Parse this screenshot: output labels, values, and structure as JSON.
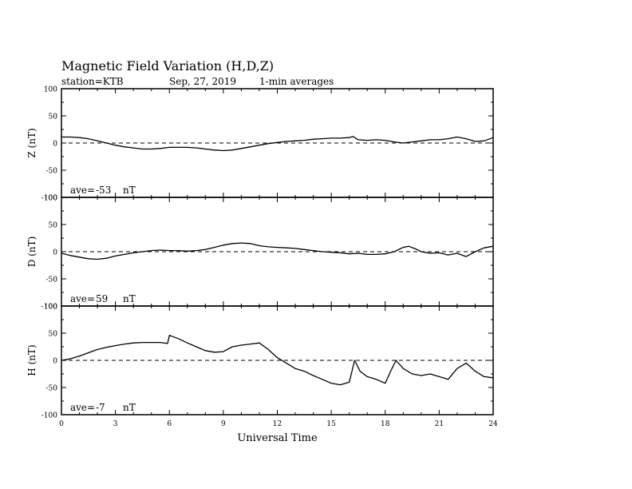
{
  "header": {
    "title": "Magnetic Field Variation (H,D,Z)",
    "station": "station=KTB",
    "date": "Sep, 27, 2019",
    "averaging": "1-min averages"
  },
  "chart_data": {
    "type": "line",
    "xlabel": "Universal Time",
    "xlim": [
      0,
      24
    ],
    "x_ticks": [
      0,
      3,
      6,
      9,
      12,
      15,
      18,
      21,
      24
    ],
    "baseline": 0,
    "panels": [
      {
        "name": "Z",
        "ylabel": "Z (nT)",
        "ylim": [
          -100,
          100
        ],
        "y_ticks": [
          100,
          50,
          0,
          -50,
          -100
        ],
        "ave_label": "ave=",
        "ave_value": "-53",
        "ave_unit": "nT",
        "x": [
          0,
          0.5,
          1,
          1.5,
          2,
          2.5,
          3,
          3.5,
          4,
          4.5,
          5,
          5.5,
          6,
          6.5,
          7,
          7.5,
          8,
          8.5,
          9,
          9.5,
          10,
          10.5,
          11,
          11.5,
          12,
          12.5,
          13,
          13.5,
          14,
          14.5,
          15,
          15.5,
          16,
          16.2,
          16.5,
          17,
          17.5,
          18,
          18.5,
          19,
          19.5,
          20,
          20.5,
          21,
          21.5,
          22,
          22.5,
          23,
          23.5,
          24
        ],
        "values": [
          11,
          11,
          10,
          8,
          4,
          0,
          -4,
          -7,
          -9,
          -11,
          -11,
          -10,
          -8,
          -8,
          -8,
          -9,
          -11,
          -13,
          -14,
          -13,
          -10,
          -7,
          -4,
          -1,
          1,
          3,
          4,
          5,
          7,
          8,
          9,
          9,
          10,
          12,
          6,
          5,
          6,
          5,
          2,
          0,
          2,
          4,
          6,
          6,
          8,
          11,
          8,
          3,
          4,
          10
        ]
      },
      {
        "name": "D",
        "ylabel": "D (nT)",
        "ylim": [
          -100,
          100
        ],
        "y_ticks": [
          100,
          50,
          0,
          -50,
          -100
        ],
        "ave_label": "ave=",
        "ave_value": "59",
        "ave_unit": "nT",
        "x": [
          0,
          0.5,
          1,
          1.5,
          2,
          2.5,
          3,
          3.5,
          4,
          4.5,
          5,
          5.5,
          6,
          6.5,
          7,
          7.5,
          8,
          8.5,
          9,
          9.5,
          10,
          10.5,
          11,
          11.5,
          12,
          12.5,
          13,
          13.5,
          14,
          14.5,
          15,
          15.5,
          16,
          16.5,
          17,
          17.5,
          18,
          18.5,
          19,
          19.3,
          19.7,
          20,
          20.5,
          21,
          21.5,
          22,
          22.5,
          23,
          23.5,
          24
        ],
        "values": [
          -3,
          -7,
          -10,
          -13,
          -14,
          -12,
          -8,
          -5,
          -2,
          0,
          2,
          3,
          2,
          2,
          1,
          2,
          4,
          8,
          12,
          15,
          16,
          15,
          11,
          9,
          8,
          7,
          6,
          4,
          2,
          0,
          -1,
          -2,
          -4,
          -3,
          -5,
          -5,
          -4,
          0,
          8,
          10,
          5,
          0,
          -3,
          -2,
          -6,
          -3,
          -9,
          0,
          7,
          10
        ]
      },
      {
        "name": "H",
        "ylabel": "H (nT)",
        "ylim": [
          -100,
          100
        ],
        "y_ticks": [
          100,
          50,
          0,
          -50,
          -100
        ],
        "ave_label": "ave=",
        "ave_value": "-7",
        "ave_unit": "nT",
        "x": [
          0,
          0.5,
          1,
          1.5,
          2,
          2.5,
          3,
          3.5,
          4,
          4.5,
          5,
          5.5,
          5.9,
          6,
          6.5,
          7,
          7.5,
          8,
          8.5,
          9,
          9.5,
          10,
          10.5,
          11,
          11.5,
          12,
          12.5,
          13,
          13.5,
          14,
          14.5,
          15,
          15.5,
          16,
          16.3,
          16.6,
          17,
          17.5,
          18,
          18.3,
          18.6,
          19,
          19.5,
          20,
          20.5,
          21,
          21.5,
          22,
          22.5,
          23,
          23.5,
          24
        ],
        "values": [
          0,
          3,
          8,
          14,
          20,
          24,
          27,
          30,
          32,
          33,
          33,
          33,
          31,
          46,
          40,
          32,
          25,
          18,
          15,
          16,
          25,
          28,
          30,
          32,
          20,
          5,
          -5,
          -15,
          -20,
          -28,
          -35,
          -42,
          -45,
          -40,
          0,
          -20,
          -30,
          -35,
          -42,
          -20,
          0,
          -15,
          -25,
          -28,
          -25,
          -30,
          -35,
          -15,
          -5,
          -20,
          -30,
          -32
        ]
      }
    ]
  }
}
